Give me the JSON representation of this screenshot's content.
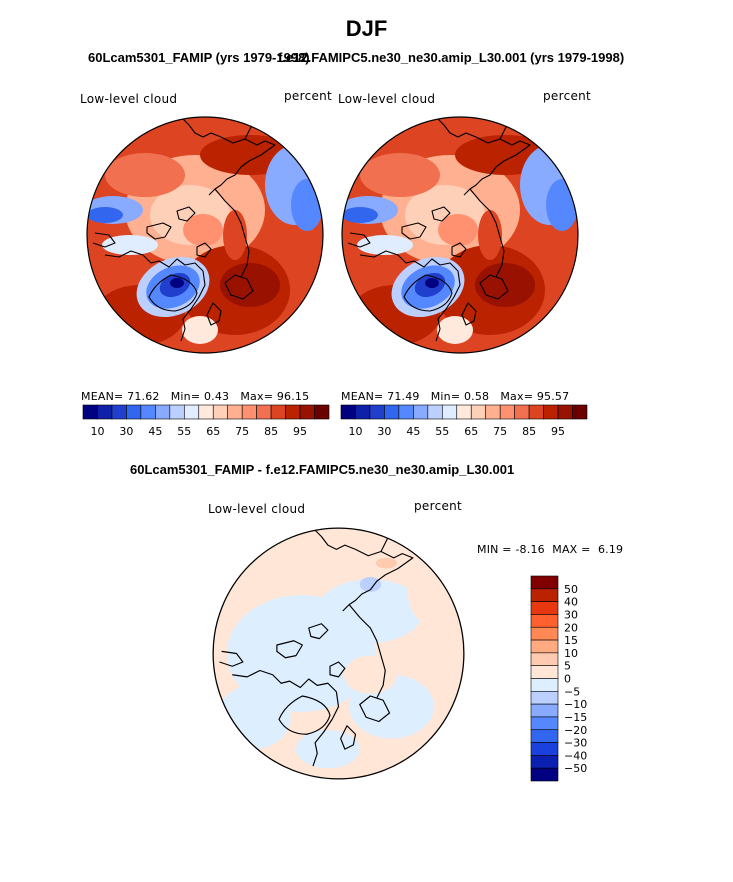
{
  "figure": {
    "title": "DJF",
    "colors": {
      "abs_scale": [
        "#000080",
        "#0e1fa8",
        "#1f3fcc",
        "#3366ee",
        "#5588ff",
        "#88aaff",
        "#bbd0ff",
        "#e0ecff",
        "#ffe8dc",
        "#ffd0b8",
        "#ffb090",
        "#ff9070",
        "#f07050",
        "#dd4422",
        "#bb2200",
        "#991100",
        "#6b0000"
      ],
      "diff_scale": [
        "#000080",
        "#0a20b0",
        "#1a40dd",
        "#3366ee",
        "#5588ff",
        "#88aaff",
        "#bbd0ff",
        "#ddeeff",
        "#ffe6d6",
        "#ffcbb0",
        "#ffaa80",
        "#ff8855",
        "#ff6030",
        "#e83810",
        "#bb2200",
        "#800000"
      ],
      "land_outline": "#000000"
    }
  },
  "panels": [
    {
      "title": "60Lcam5301_FAMIP (yrs 1979-1998)",
      "variable": "Low-level cloud",
      "units": "percent",
      "stats": {
        "mean_label": "MEAN=",
        "mean": "71.62",
        "min_label": "Min=",
        "min": "0.43",
        "max_label": "Max=",
        "max": "96.15"
      },
      "colorbar_ticks": [
        "10",
        "30",
        "45",
        "55",
        "65",
        "75",
        "85",
        "95"
      ]
    },
    {
      "title": "f.e12.FAMIPC5.ne30_ne30.amip_L30.001 (yrs 1979-1998)",
      "variable": "Low-level cloud",
      "units": "percent",
      "stats": {
        "mean_label": "MEAN=",
        "mean": "71.49",
        "min_label": "Min=",
        "min": "0.58",
        "max_label": "Max=",
        "max": "95.57"
      },
      "colorbar_ticks": [
        "10",
        "30",
        "45",
        "55",
        "65",
        "75",
        "85",
        "95"
      ]
    },
    {
      "title": "60Lcam5301_FAMIP - f.e12.FAMIPC5.ne30_ne30.amip_L30.001",
      "variable": "Low-level cloud",
      "units": "percent",
      "stats": {
        "min_label": "MIN =",
        "min": "-8.16",
        "max_label": "MAX =",
        "max": "6.19"
      },
      "colorbar_ticks": [
        "50",
        "40",
        "30",
        "20",
        "15",
        "10",
        "5",
        "0",
        "−5",
        "−10",
        "−15",
        "−20",
        "−30",
        "−40",
        "−50"
      ]
    }
  ],
  "chart_data": [
    {
      "type": "heatmap",
      "projection": "north-polar-stereographic",
      "title": "60Lcam5301_FAMIP (yrs 1979-1998)",
      "variable": "Low-level cloud",
      "units": "percent",
      "mean": 71.62,
      "min": 0.43,
      "max": 96.15,
      "colorbar_levels": [
        5,
        10,
        20,
        30,
        40,
        45,
        50,
        55,
        60,
        65,
        70,
        75,
        80,
        85,
        90,
        95
      ],
      "colorbar_tick_labels": [
        10,
        30,
        45,
        55,
        65,
        75,
        85,
        95
      ]
    },
    {
      "type": "heatmap",
      "projection": "north-polar-stereographic",
      "title": "f.e12.FAMIPC5.ne30_ne30.amip_L30.001 (yrs 1979-1998)",
      "variable": "Low-level cloud",
      "units": "percent",
      "mean": 71.49,
      "min": 0.58,
      "max": 95.57,
      "colorbar_levels": [
        5,
        10,
        20,
        30,
        40,
        45,
        50,
        55,
        60,
        65,
        70,
        75,
        80,
        85,
        90,
        95
      ],
      "colorbar_tick_labels": [
        10,
        30,
        45,
        55,
        65,
        75,
        85,
        95
      ]
    },
    {
      "type": "heatmap",
      "projection": "north-polar-stereographic",
      "title": "60Lcam5301_FAMIP - f.e12.FAMIPC5.ne30_ne30.amip_L30.001",
      "variable": "Low-level cloud",
      "units": "percent",
      "min": -8.16,
      "max": 6.19,
      "colorbar_levels": [
        -50,
        -40,
        -30,
        -20,
        -15,
        -10,
        -5,
        0,
        5,
        10,
        15,
        20,
        30,
        40,
        50
      ]
    }
  ]
}
